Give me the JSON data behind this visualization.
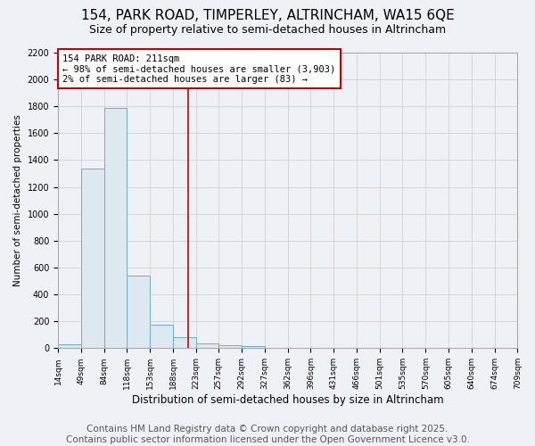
{
  "title": "154, PARK ROAD, TIMPERLEY, ALTRINCHAM, WA15 6QE",
  "subtitle": "Size of property relative to semi-detached houses in Altrincham",
  "xlabel": "Distribution of semi-detached houses by size in Altrincham",
  "ylabel": "Number of semi-detached properties",
  "bins": [
    14,
    49,
    84,
    118,
    153,
    188,
    223,
    257,
    292,
    327,
    362,
    396,
    431,
    466,
    501,
    535,
    570,
    605,
    640,
    674,
    709
  ],
  "bin_labels": [
    "14sqm",
    "49sqm",
    "84sqm",
    "118sqm",
    "153sqm",
    "188sqm",
    "223sqm",
    "257sqm",
    "292sqm",
    "327sqm",
    "362sqm",
    "396sqm",
    "431sqm",
    "466sqm",
    "501sqm",
    "535sqm",
    "570sqm",
    "605sqm",
    "640sqm",
    "674sqm",
    "709sqm"
  ],
  "values": [
    30,
    1340,
    1790,
    540,
    175,
    80,
    35,
    25,
    15,
    5,
    2,
    1,
    1,
    1,
    1,
    0,
    0,
    0,
    0,
    0
  ],
  "bar_color": "#dde8f0",
  "bar_edge_color": "#6baed6",
  "property_line_x": 211,
  "property_line_color": "#cc0000",
  "annotation_text_line1": "154 PARK ROAD: 211sqm",
  "annotation_text_line2": "← 98% of semi-detached houses are smaller (3,903)",
  "annotation_text_line3": "2% of semi-detached houses are larger (83) →",
  "annotation_box_color": "#ffffff",
  "annotation_box_edge": "#cc0000",
  "ylim": [
    0,
    2200
  ],
  "yticks": [
    0,
    200,
    400,
    600,
    800,
    1000,
    1200,
    1400,
    1600,
    1800,
    2000,
    2200
  ],
  "grid_color": "#cccccc",
  "background_color": "#eef2f7",
  "footer": "Contains HM Land Registry data © Crown copyright and database right 2025.\nContains public sector information licensed under the Open Government Licence v3.0.",
  "title_fontsize": 11,
  "subtitle_fontsize": 9,
  "footer_fontsize": 7.5
}
